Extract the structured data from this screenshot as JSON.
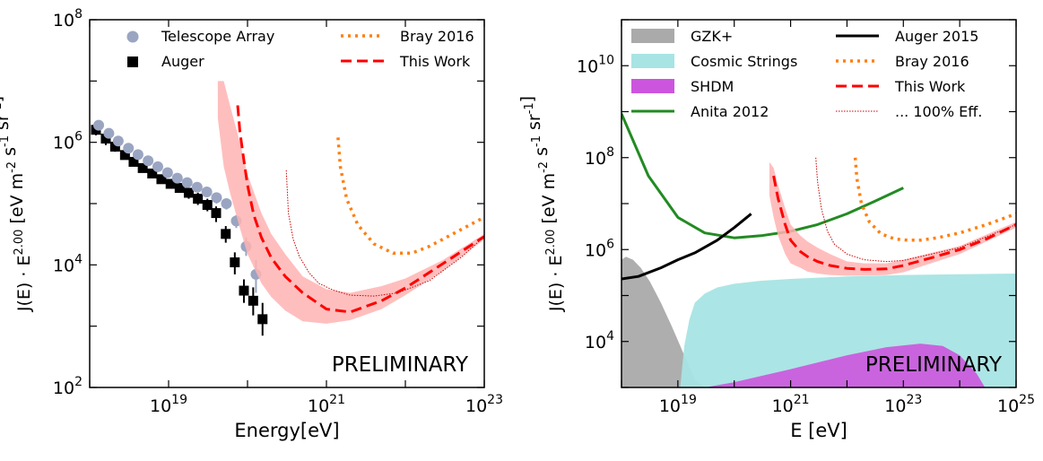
{
  "chart_data": [
    {
      "type": "scatter",
      "xlabel": "Energy[eV]",
      "ylabel": "J(E) · E^2.00 [eV m^-2 s^-1 sr^-1]",
      "xscale": "log",
      "yscale": "log",
      "xlim": [
        1e+18,
        1e+23
      ],
      "ylim": [
        100,
        100000000.0
      ],
      "x_ticks": [
        {
          "value": 1e+19,
          "base": "10",
          "exp": "19"
        },
        {
          "value": 1e+21,
          "base": "10",
          "exp": "21"
        },
        {
          "value": 1e+23,
          "base": "10",
          "exp": "23"
        }
      ],
      "y_ticks": [
        {
          "value": 100,
          "base": "10",
          "exp": "2"
        },
        {
          "value": 10000,
          "base": "10",
          "exp": "4"
        },
        {
          "value": 1000000,
          "base": "10",
          "exp": "6"
        },
        {
          "value": 100000000,
          "base": "10",
          "exp": "8"
        }
      ],
      "annotation": "PRELIMINARY",
      "legend_position": "top",
      "legend": [
        {
          "label": "Telescope Array",
          "marker": "circle",
          "color": "#9aa5c2"
        },
        {
          "label": "Auger",
          "marker": "square",
          "color": "#000000"
        },
        {
          "label": "Bray 2016",
          "line": "dotted",
          "color": "#ff7f0e"
        },
        {
          "label": "This Work",
          "line": "dashed",
          "color": "#ff0000"
        }
      ],
      "series": [
        {
          "name": "Auger",
          "kind": "points",
          "marker": "square",
          "color": "#000000",
          "x": [
            1.2e+18,
            1.6e+18,
            2.1e+18,
            2.8e+18,
            3.6e+18,
            4.7e+18,
            6.2e+18,
            8.1e+18,
            1.06e+19,
            1.38e+19,
            1.8e+19,
            2.35e+19,
            3.1e+19,
            4e+19,
            5.3e+19,
            6.9e+19,
            9e+19,
            1.18e+20,
            1.55e+20
          ],
          "y": [
            1600000.0,
            1150000.0,
            850000.0,
            620000.0,
            480000.0,
            380000.0,
            310000.0,
            250000.0,
            210000.0,
            180000.0,
            150000.0,
            120000.0,
            95000.0,
            70000.0,
            32000.0,
            11000.0,
            3800.0,
            2600.0,
            1300.0
          ],
          "yerr_hi": [
            2000000.0,
            1400000.0,
            1000000.0,
            720000.0,
            550000.0,
            430000.0,
            350000.0,
            280000.0,
            240000.0,
            210000.0,
            180000.0,
            150000.0,
            120000.0,
            90000.0,
            43000.0,
            16000.0,
            5800.0,
            4300.0,
            2400.0
          ],
          "yerr_lo": [
            1300000.0,
            900000.0,
            700000.0,
            530000.0,
            410000.0,
            330000.0,
            270000.0,
            220000.0,
            180000.0,
            150000.0,
            120000.0,
            95000.0,
            75000.0,
            50000.0,
            23000.0,
            7000.0,
            2400.0,
            1500.0,
            700
          ]
        },
        {
          "name": "Telescope Array",
          "kind": "points",
          "marker": "circle",
          "color": "#9aa5c2",
          "x": [
            1.3e+18,
            1.75e+18,
            2.3e+18,
            3.1e+18,
            4.1e+18,
            5.5e+18,
            7.3e+18,
            9.7e+18,
            1.29e+19,
            1.72e+19,
            2.3e+19,
            3.05e+19,
            4.05e+19,
            5.4e+19,
            7.2e+19,
            9.6e+19,
            1.28e+20
          ],
          "y": [
            1900000.0,
            1400000.0,
            1050000.0,
            800000.0,
            630000.0,
            500000.0,
            400000.0,
            320000.0,
            260000.0,
            220000.0,
            185000.0,
            155000.0,
            125000.0,
            100000.0,
            52000.0,
            20000.0,
            7000.0
          ],
          "yerr_hi": [
            2200000.0,
            1600000.0,
            1200000.0,
            900000.0,
            700000.0,
            560000.0,
            450000.0,
            360000.0,
            290000.0,
            250000.0,
            210000.0,
            180000.0,
            150000.0,
            120000.0,
            65000.0,
            28000.0,
            12000.0
          ],
          "yerr_lo": [
            1600000.0,
            1200000.0,
            900000.0,
            700000.0,
            560000.0,
            440000.0,
            350000.0,
            280000.0,
            230000.0,
            190000.0,
            160000.0,
            130000.0,
            100000.0,
            80000.0,
            40000.0,
            14000.0,
            3500.0
          ]
        },
        {
          "name": "This Work band",
          "kind": "band",
          "color": "#ffb3b3",
          "x": [
            4.2e+19,
            5e+19,
            6e+19,
            8e+19,
            1e+20,
            1.5e+20,
            2e+20,
            3e+20,
            5e+20,
            1e+21,
            2e+21,
            5e+21,
            1e+22,
            3e+22,
            1e+23
          ],
          "y_hi": [
            10000000.0,
            10000000.0,
            4000000.0,
            1000000.0,
            300000.0,
            70000.0,
            32000.0,
            15000.0,
            6500.0,
            4000.0,
            3500.0,
            4500.0,
            6000.0,
            12000.0,
            32000.0
          ],
          "y_lo": [
            2500000.0,
            400000.0,
            150000.0,
            40000.0,
            15000.0,
            5000.0,
            3000.0,
            1800.0,
            1200.0,
            1100.0,
            1250.0,
            1900.0,
            3200.0,
            8000.0,
            26000.0
          ]
        },
        {
          "name": "This Work",
          "kind": "line",
          "dash": "dashed",
          "color": "#ff0000",
          "x": [
            7.5e+19,
            8e+19,
            9e+19,
            1e+20,
            1.2e+20,
            1.5e+20,
            2e+20,
            3e+20,
            5e+20,
            1e+21,
            2e+21,
            5e+21,
            1e+22,
            3e+22,
            1e+23
          ],
          "y": [
            4000000.0,
            1500000.0,
            500000.0,
            200000.0,
            65000.0,
            28000.0,
            13000.0,
            6500.0,
            3500.0,
            1900.0,
            1700.0,
            2600.0,
            4200.0,
            10500.0,
            29000.0
          ]
        },
        {
          "name": "... 100% Eff.",
          "kind": "line",
          "dash": "thin",
          "color": "#cc0000",
          "x": [
            3.1e+20,
            3.3e+20,
            3.8e+20,
            4.5e+20,
            6e+20,
            8e+20,
            1.2e+21,
            2e+21,
            4e+21,
            8e+21,
            2e+22,
            5e+22,
            1e+23
          ],
          "y": [
            350000.0,
            70000.0,
            26000.0,
            14000.0,
            7500.0,
            5000.0,
            3900.0,
            3200.0,
            3100.0,
            3500.0,
            5500.0,
            13000.0,
            29000.0
          ]
        },
        {
          "name": "Bray 2016",
          "kind": "line",
          "dash": "dotted",
          "color": "#ff7f0e",
          "x": [
            1.4e+21,
            1.5e+21,
            1.8e+21,
            2.5e+21,
            4e+21,
            7e+21,
            1.2e+22,
            2e+22,
            4e+22,
            1e+23
          ],
          "y": [
            1200000.0,
            400000.0,
            120000.0,
            45000.0,
            22000.0,
            15500.0,
            15500.0,
            20000.0,
            32000.0,
            60000.0
          ]
        }
      ]
    },
    {
      "type": "line",
      "xlabel": "E [eV]",
      "ylabel": "J(E) · E^2.00 [eV m^-2 s^-1 sr^-1]",
      "xscale": "log",
      "yscale": "log",
      "xlim": [
        1e+18,
        1e+25
      ],
      "ylim": [
        1000,
        100000000000.0
      ],
      "x_ticks": [
        {
          "value": 1e+19,
          "base": "10",
          "exp": "19"
        },
        {
          "value": 1e+21,
          "base": "10",
          "exp": "21"
        },
        {
          "value": 1e+23,
          "base": "10",
          "exp": "23"
        },
        {
          "value": 1e+25,
          "base": "10",
          "exp": "25"
        }
      ],
      "y_ticks": [
        {
          "value": 10000,
          "base": "10",
          "exp": "4"
        },
        {
          "value": 1000000,
          "base": "10",
          "exp": "6"
        },
        {
          "value": 100000000,
          "base": "10",
          "exp": "8"
        },
        {
          "value": 10000000000,
          "base": "10",
          "exp": "10"
        }
      ],
      "annotation": "PRELIMINARY",
      "legend_position": "top",
      "legend": [
        {
          "label": "GZK+",
          "patch": true,
          "color": "#aaaaaa"
        },
        {
          "label": "Cosmic Strings",
          "patch": true,
          "color": "#a8e4e4"
        },
        {
          "label": "SHDM",
          "patch": true,
          "color": "#cc55dd"
        },
        {
          "label": "Anita 2012",
          "line": "solid",
          "color": "#228b22"
        },
        {
          "label": "Auger 2015",
          "line": "solid",
          "color": "#000000"
        },
        {
          "label": "Bray 2016",
          "line": "dotted",
          "color": "#ff7f0e"
        },
        {
          "label": "This Work",
          "line": "dashed",
          "color": "#ff0000"
        },
        {
          "label": "... 100% Eff.",
          "line": "thin",
          "color": "#cc0000"
        }
      ],
      "series": [
        {
          "name": "GZK+",
          "kind": "fill",
          "color": "#aaaaaa",
          "x": [
            1e+18,
            1.2e+18,
            1.6e+18,
            2.2e+18,
            3.2e+18,
            5e+18,
            8e+18,
            1.3e+19,
            2e+19,
            3e+19
          ],
          "y": [
            600000.0,
            700000.0,
            600000.0,
            400000.0,
            200000.0,
            70000.0,
            20000.0,
            5000.0,
            1500.0,
            1000
          ]
        },
        {
          "name": "Cosmic Strings",
          "kind": "fill",
          "color": "#a8e4e4",
          "x": [
            1.1e+19,
            1.3e+19,
            1.6e+19,
            2e+19,
            3e+19,
            5e+19,
            1e+20,
            3e+20,
            1e+21,
            1e+22,
            1e+23,
            1e+24,
            1e+25
          ],
          "y": [
            1000,
            8000.0,
            30000.0,
            70000.0,
            110000.0,
            150000.0,
            180000.0,
            210000.0,
            230000.0,
            260000.0,
            280000.0,
            290000.0,
            300000.0
          ]
        },
        {
          "name": "SHDM",
          "kind": "fill",
          "color": "#cc55dd",
          "x": [
            3e+19,
            1e+20,
            1e+21,
            1e+22,
            5e+22,
            2e+23,
            5e+23,
            1e+24,
            2e+24,
            2.8e+24
          ],
          "y": [
            1000,
            1300.0,
            2500.0,
            5000.0,
            7500.0,
            9000.0,
            8000.0,
            5000.0,
            2000.0,
            1000
          ]
        },
        {
          "name": "Anita 2012",
          "kind": "line",
          "color": "#228b22",
          "x": [
            1e+18,
            3e+18,
            1e+19,
            3e+19,
            1e+20,
            3e+20,
            1e+21,
            3e+21,
            1e+22,
            3e+22,
            1e+23
          ],
          "y": [
            900000000.0,
            40000000.0,
            5000000.0,
            2300000.0,
            1800000.0,
            2000000.0,
            2500000.0,
            3500000.0,
            6000000.0,
            11000000.0,
            22000000.0
          ]
        },
        {
          "name": "Auger 2015",
          "kind": "line",
          "color": "#000000",
          "x": [
            1e+18,
            2e+18,
            5e+18,
            1e+19,
            2e+19,
            5e+19,
            1e+20,
            2e+20
          ],
          "y": [
            230000.0,
            260000.0,
            400000.0,
            600000.0,
            850000.0,
            1600000.0,
            3000000.0,
            6000000.0
          ]
        },
        {
          "name": "This Work band",
          "kind": "band",
          "color": "#ffb3b3",
          "x": [
            4.2e+20,
            5e+20,
            6e+20,
            8e+20,
            1e+21,
            1.5e+21,
            2e+21,
            3e+21,
            5e+21,
            1e+22,
            2e+22,
            5e+22,
            1e+23,
            1e+24,
            1e+25
          ],
          "y_hi": [
            80000000.0,
            60000000.0,
            25000000.0,
            8000000.0,
            3500000.0,
            2000000.0,
            1500000.0,
            1100000.0,
            800000.0,
            550000.0,
            500000.0,
            500000.0,
            600000.0,
            1200000.0,
            4000000.0
          ],
          "y_lo": [
            15000000.0,
            5000000.0,
            2000000.0,
            800000.0,
            500000.0,
            400000.0,
            330000.0,
            300000.0,
            280000.0,
            270000.0,
            270000.0,
            280000.0,
            320000.0,
            800000.0,
            3000000.0
          ]
        },
        {
          "name": "This Work",
          "kind": "line",
          "dash": "dashed",
          "color": "#ff0000",
          "x": [
            5e+20,
            6e+20,
            8e+20,
            1e+21,
            1.5e+21,
            2e+21,
            3e+21,
            5e+21,
            1e+22,
            2e+22,
            5e+22,
            1e+23,
            3e+23,
            1e+24,
            3e+24,
            1e+25
          ],
          "y": [
            40000000.0,
            13000000.0,
            3500000.0,
            1600000.0,
            900000.0,
            700000.0,
            550000.0,
            450000.0,
            390000.0,
            370000.0,
            380000.0,
            450000.0,
            650000.0,
            1000000.0,
            1700000.0,
            3500000.0
          ]
        },
        {
          "name": "... 100% Eff.",
          "kind": "line",
          "dash": "thin",
          "color": "#cc0000",
          "x": [
            2.8e+21,
            3e+21,
            3.5e+21,
            4.5e+21,
            6e+21,
            1e+22,
            2e+22,
            5e+22,
            1e+23,
            1e+24,
            1e+25
          ],
          "y": [
            100000000.0,
            30000000.0,
            8000000.0,
            2500000.0,
            1300000.0,
            800000.0,
            600000.0,
            550000.0,
            580000.0,
            1100000.0,
            3500000.0
          ]
        },
        {
          "name": "Bray 2016",
          "kind": "line",
          "dash": "dotted",
          "color": "#ff7f0e",
          "x": [
            1.4e+22,
            1.5e+22,
            1.8e+22,
            2.5e+22,
            4e+22,
            7e+22,
            1.2e+23,
            2e+23,
            4e+23,
            1e+24,
            3e+24,
            1e+25
          ],
          "y": [
            100000000.0,
            35000000.0,
            10000000.0,
            4000000.0,
            2200000.0,
            1700000.0,
            1600000.0,
            1600000.0,
            1800000.0,
            2300000.0,
            3500000.0,
            6000000.0
          ]
        }
      ]
    }
  ]
}
